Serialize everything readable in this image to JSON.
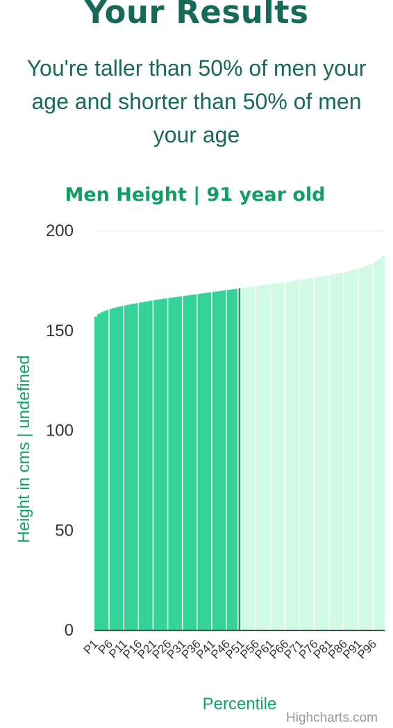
{
  "header": {
    "title": "Your Results",
    "summary": "You're taller than 50% of men your age and shorter than 50% of men your age"
  },
  "chart_data": {
    "type": "bar",
    "title": "Men Height | 91 year old",
    "xlabel": "Percentile",
    "ylabel": "Height in cms | undefined",
    "ylim": [
      0,
      200
    ],
    "yticks": [
      0,
      50,
      100,
      150,
      200
    ],
    "grid": true,
    "legend": "none",
    "user_percentile": "P50",
    "categories": [
      "P1",
      "P2",
      "P3",
      "P4",
      "P5",
      "P6",
      "P7",
      "P8",
      "P9",
      "P10",
      "P11",
      "P12",
      "P13",
      "P14",
      "P15",
      "P16",
      "P17",
      "P18",
      "P19",
      "P20",
      "P21",
      "P22",
      "P23",
      "P24",
      "P25",
      "P26",
      "P27",
      "P28",
      "P29",
      "P30",
      "P31",
      "P32",
      "P33",
      "P34",
      "P35",
      "P36",
      "P37",
      "P38",
      "P39",
      "P40",
      "P41",
      "P42",
      "P43",
      "P44",
      "P45",
      "P46",
      "P47",
      "P48",
      "P49",
      "P50",
      "P51",
      "P52",
      "P53",
      "P54",
      "P55",
      "P56",
      "P57",
      "P58",
      "P59",
      "P60",
      "P61",
      "P62",
      "P63",
      "P64",
      "P65",
      "P66",
      "P67",
      "P68",
      "P69",
      "P70",
      "P71",
      "P72",
      "P73",
      "P74",
      "P75",
      "P76",
      "P77",
      "P78",
      "P79",
      "P80",
      "P81",
      "P82",
      "P83",
      "P84",
      "P85",
      "P86",
      "P87",
      "P88",
      "P89",
      "P90",
      "P91",
      "P92",
      "P93",
      "P94",
      "P95",
      "P96",
      "P97",
      "P98",
      "P99"
    ],
    "tick_labels": [
      "P1",
      "P6",
      "P11",
      "P16",
      "P21",
      "P26",
      "P31",
      "P36",
      "P41",
      "P46",
      "P51",
      "P56",
      "P61",
      "P66",
      "P71",
      "P76",
      "P81",
      "P86",
      "P91",
      "P96"
    ],
    "values": [
      157.0,
      158.3,
      159.1,
      159.8,
      160.3,
      160.8,
      161.2,
      161.6,
      161.9,
      162.3,
      162.6,
      162.9,
      163.2,
      163.4,
      163.7,
      164.0,
      164.2,
      164.5,
      164.7,
      165.0,
      165.2,
      165.4,
      165.6,
      165.9,
      166.1,
      166.3,
      166.5,
      166.7,
      166.9,
      167.1,
      167.3,
      167.5,
      167.7,
      167.9,
      168.1,
      168.3,
      168.5,
      168.7,
      168.9,
      169.1,
      169.3,
      169.5,
      169.7,
      169.9,
      170.1,
      170.3,
      170.5,
      170.7,
      170.9,
      171.1,
      171.3,
      171.5,
      171.7,
      171.9,
      172.1,
      172.3,
      172.5,
      172.7,
      172.9,
      173.1,
      173.3,
      173.5,
      173.7,
      173.9,
      174.1,
      174.3,
      174.5,
      174.7,
      174.9,
      175.2,
      175.4,
      175.6,
      175.8,
      176.1,
      176.3,
      176.5,
      176.8,
      177.0,
      177.3,
      177.5,
      177.8,
      178.1,
      178.4,
      178.7,
      179.0,
      179.3,
      179.6,
      180.0,
      180.4,
      180.8,
      181.2,
      181.7,
      182.2,
      182.8,
      183.4,
      184.1,
      185.0,
      186.0,
      187.5
    ],
    "colors": {
      "below": "#34d399",
      "above": "#d1fae5",
      "user": "#0f9f62",
      "separator": "#ffffff",
      "grid": "#e6e6e6",
      "axis": "#333333"
    }
  },
  "credits": "Highcharts.com"
}
